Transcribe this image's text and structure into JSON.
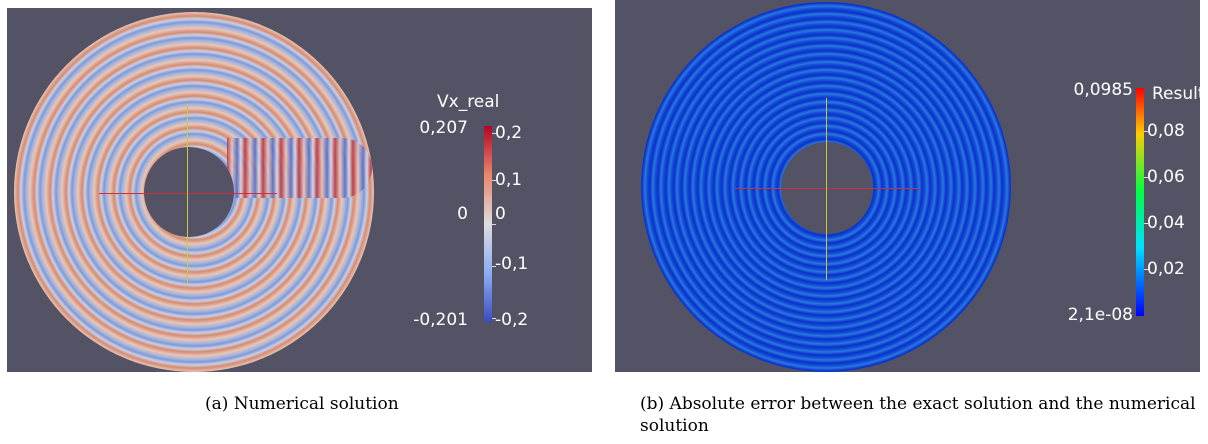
{
  "panels": [
    {
      "legend_title": "Vx_real",
      "range_max": "0,207",
      "mid_label": "0",
      "range_min": "-0,201",
      "ticks": [
        "0,2",
        "0,1",
        "0",
        "-0,1",
        "-0,2"
      ],
      "caption": "(a) Numerical solution"
    },
    {
      "legend_title": "Result",
      "range_max": "0,0985",
      "range_min": "2,1e-08",
      "ticks": [
        "0,08",
        "0,06",
        "0,04",
        "0,02"
      ],
      "caption": "(b) Absolute error between the exact solution and the numerical solution"
    }
  ]
}
